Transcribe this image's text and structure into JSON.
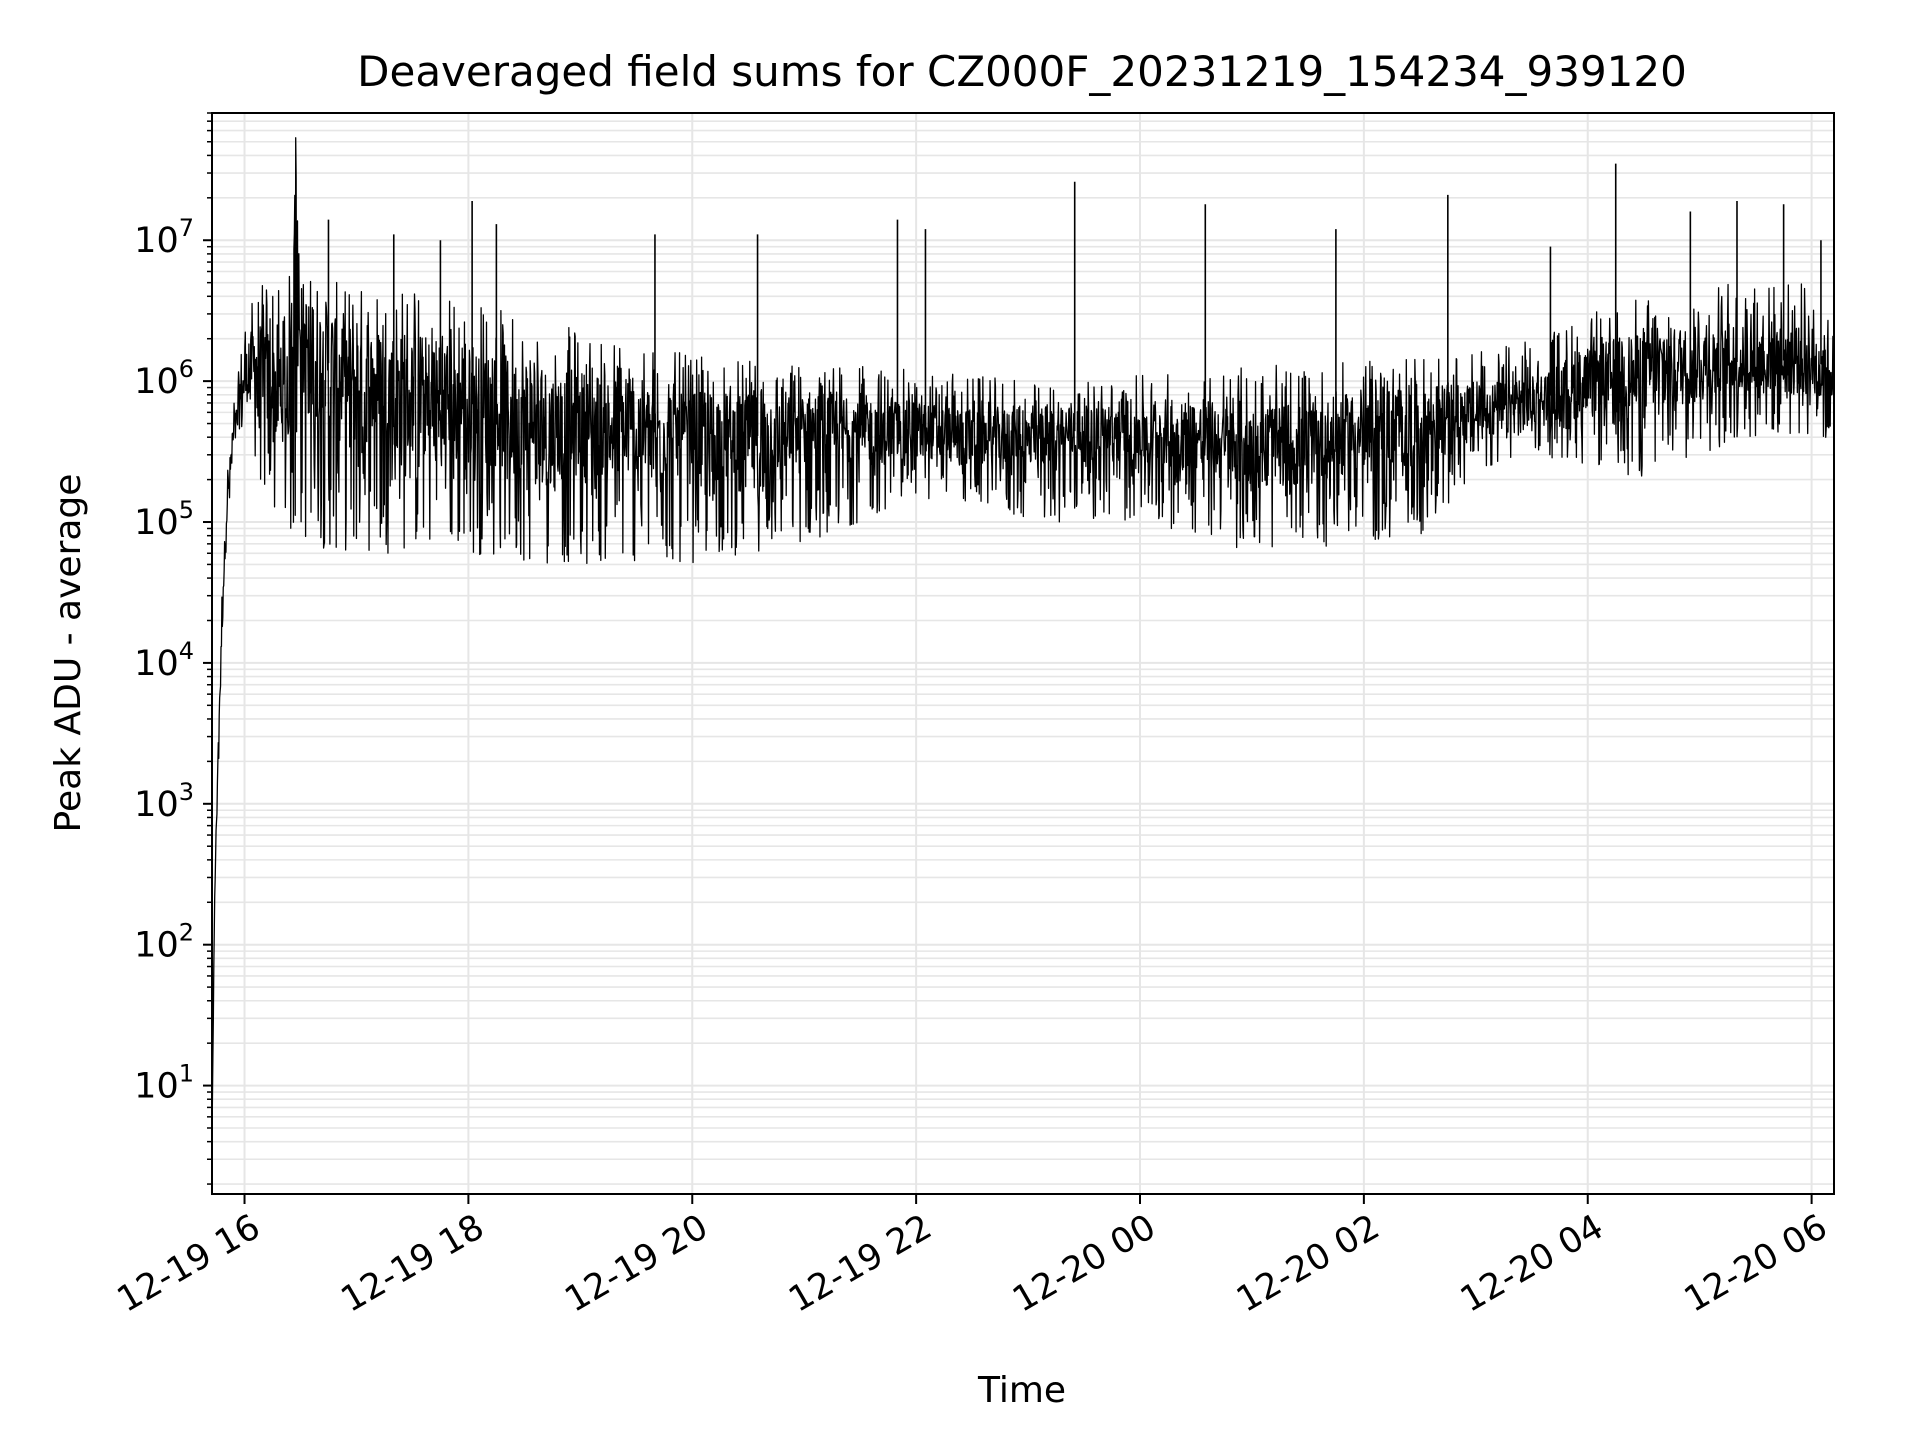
{
  "chart_data": {
    "type": "line",
    "title": "Deaveraged field sums for CZ000F_20231219_154234_939120",
    "xlabel": "Time",
    "ylabel": "Peak ADU - average",
    "x_axis_type": "datetime",
    "y_scale": "log",
    "xlim": [
      "2023-12-19T15:42:34",
      "2023-12-20T06:12:00"
    ],
    "ylim": [
      1.7,
      80000000
    ],
    "x_ticks": [
      {
        "value": "2023-12-19T16:00:00",
        "label": "12-19 16"
      },
      {
        "value": "2023-12-19T18:00:00",
        "label": "12-19 18"
      },
      {
        "value": "2023-12-19T20:00:00",
        "label": "12-19 20"
      },
      {
        "value": "2023-12-19T22:00:00",
        "label": "12-19 22"
      },
      {
        "value": "2023-12-20T00:00:00",
        "label": "12-20 00"
      },
      {
        "value": "2023-12-20T02:00:00",
        "label": "12-20 02"
      },
      {
        "value": "2023-12-20T04:00:00",
        "label": "12-20 04"
      },
      {
        "value": "2023-12-20T06:00:00",
        "label": "12-20 06"
      }
    ],
    "y_ticks": [
      {
        "value": 10,
        "base": "10",
        "exp": "1"
      },
      {
        "value": 100,
        "base": "10",
        "exp": "2"
      },
      {
        "value": 1000,
        "base": "10",
        "exp": "3"
      },
      {
        "value": 10000,
        "base": "10",
        "exp": "4"
      },
      {
        "value": 100000,
        "base": "10",
        "exp": "5"
      },
      {
        "value": 1000000,
        "base": "10",
        "exp": "6"
      },
      {
        "value": 10000000,
        "base": "10",
        "exp": "7"
      }
    ],
    "grid": true,
    "line_color": "#000000",
    "grid_color": "#e6e6e6",
    "series": [
      {
        "x": [
          "2023-12-19T15:42:34",
          "2023-12-19T15:44:00",
          "2023-12-19T15:46:00",
          "2023-12-19T15:48:00",
          "2023-12-19T15:50:00",
          "2023-12-19T15:52:00",
          "2023-12-19T15:54:00",
          "2023-12-19T15:57:00",
          "2023-12-19T16:00:00",
          "2023-12-19T16:05:00",
          "2023-12-19T16:10:00",
          "2023-12-19T16:15:00",
          "2023-12-19T16:20:00",
          "2023-12-19T16:25:00",
          "2023-12-19T16:27:00",
          "2023-12-19T16:30:00",
          "2023-12-19T16:40:00",
          "2023-12-19T16:50:00",
          "2023-12-19T17:00:00",
          "2023-12-19T17:15:00",
          "2023-12-19T17:30:00",
          "2023-12-19T17:45:00",
          "2023-12-19T18:00:00",
          "2023-12-19T18:15:00",
          "2023-12-19T18:30:00",
          "2023-12-19T18:45:00",
          "2023-12-19T19:00:00",
          "2023-12-19T19:30:00",
          "2023-12-19T20:00:00",
          "2023-12-19T20:30:00",
          "2023-12-19T21:00:00",
          "2023-12-19T21:30:00",
          "2023-12-19T22:00:00",
          "2023-12-19T22:30:00",
          "2023-12-19T23:00:00",
          "2023-12-19T23:30:00",
          "2023-12-20T00:00:00",
          "2023-12-20T00:30:00",
          "2023-12-20T01:00:00",
          "2023-12-20T01:30:00",
          "2023-12-20T02:00:00",
          "2023-12-20T02:30:00",
          "2023-12-20T03:00:00",
          "2023-12-20T03:30:00",
          "2023-12-20T04:00:00",
          "2023-12-20T04:30:00",
          "2023-12-20T05:00:00",
          "2023-12-20T05:30:00",
          "2023-12-20T06:00:00",
          "2023-12-20T06:12:00"
        ],
        "y": [
          4,
          200,
          3000,
          20000,
          100000,
          200000,
          400000,
          600000,
          1000000,
          1500000,
          1200000,
          900000,
          1000000,
          1100000,
          35000000,
          2000000,
          1500000,
          1200000,
          1000000,
          900000,
          800000,
          800000,
          700000,
          600000,
          600000,
          500000,
          500000,
          450000,
          400000,
          400000,
          450000,
          450000,
          450000,
          400000,
          400000,
          450000,
          450000,
          400000,
          350000,
          350000,
          450000,
          500000,
          600000,
          700000,
          1000000,
          1200000,
          1300000,
          1400000,
          1400000,
          1200000
        ],
        "band_low": [
          4,
          200,
          1500,
          15000,
          60000,
          100000,
          200000,
          300000,
          500000,
          300000,
          150000,
          80000,
          70000,
          70000,
          70000,
          70000,
          65000,
          60000,
          60000,
          60000,
          60000,
          60000,
          60000,
          55000,
          50000,
          50000,
          50000,
          50000,
          50000,
          60000,
          70000,
          100000,
          150000,
          130000,
          100000,
          100000,
          100000,
          80000,
          60000,
          65000,
          70000,
          70000,
          200000,
          300000,
          250000,
          200000,
          300000,
          400000,
          400000,
          300000
        ],
        "band_high": [
          4,
          300,
          3000,
          40000,
          200000,
          400000,
          800000,
          1200000,
          3000000,
          4000000,
          5000000,
          6000000,
          6000000,
          6000000,
          6000000,
          6000000,
          6000000,
          5000000,
          5000000,
          5000000,
          5000000,
          4500000,
          4000000,
          3500000,
          3000000,
          2500000,
          2500000,
          2000000,
          1500000,
          1400000,
          1400000,
          1300000,
          1200000,
          1100000,
          1000000,
          1000000,
          1100000,
          1200000,
          1300000,
          1300000,
          1400000,
          1500000,
          1600000,
          2000000,
          3000000,
          4000000,
          5000000,
          5000000,
          5000000,
          2500000
        ],
        "spikes": [
          {
            "x": "2023-12-19T16:27:00",
            "y": 35000000
          },
          {
            "x": "2023-12-19T16:45:00",
            "y": 14000000
          },
          {
            "x": "2023-12-19T17:20:00",
            "y": 11000000
          },
          {
            "x": "2023-12-19T17:45:00",
            "y": 10000000
          },
          {
            "x": "2023-12-19T18:02:00",
            "y": 19000000
          },
          {
            "x": "2023-12-19T18:15:00",
            "y": 13000000
          },
          {
            "x": "2023-12-19T19:40:00",
            "y": 11000000
          },
          {
            "x": "2023-12-19T20:35:00",
            "y": 11000000
          },
          {
            "x": "2023-12-19T21:50:00",
            "y": 14000000
          },
          {
            "x": "2023-12-19T22:05:00",
            "y": 12000000
          },
          {
            "x": "2023-12-19T23:25:00",
            "y": 26000000
          },
          {
            "x": "2023-12-20T00:35:00",
            "y": 18000000
          },
          {
            "x": "2023-12-20T01:45:00",
            "y": 12000000
          },
          {
            "x": "2023-12-20T02:45:00",
            "y": 21000000
          },
          {
            "x": "2023-12-20T03:40:00",
            "y": 9000000
          },
          {
            "x": "2023-12-20T04:15:00",
            "y": 35000000
          },
          {
            "x": "2023-12-20T04:55:00",
            "y": 16000000
          },
          {
            "x": "2023-12-20T05:20:00",
            "y": 19000000
          },
          {
            "x": "2023-12-20T05:45:00",
            "y": 18000000
          },
          {
            "x": "2023-12-20T06:05:00",
            "y": 10000000
          }
        ]
      }
    ]
  }
}
